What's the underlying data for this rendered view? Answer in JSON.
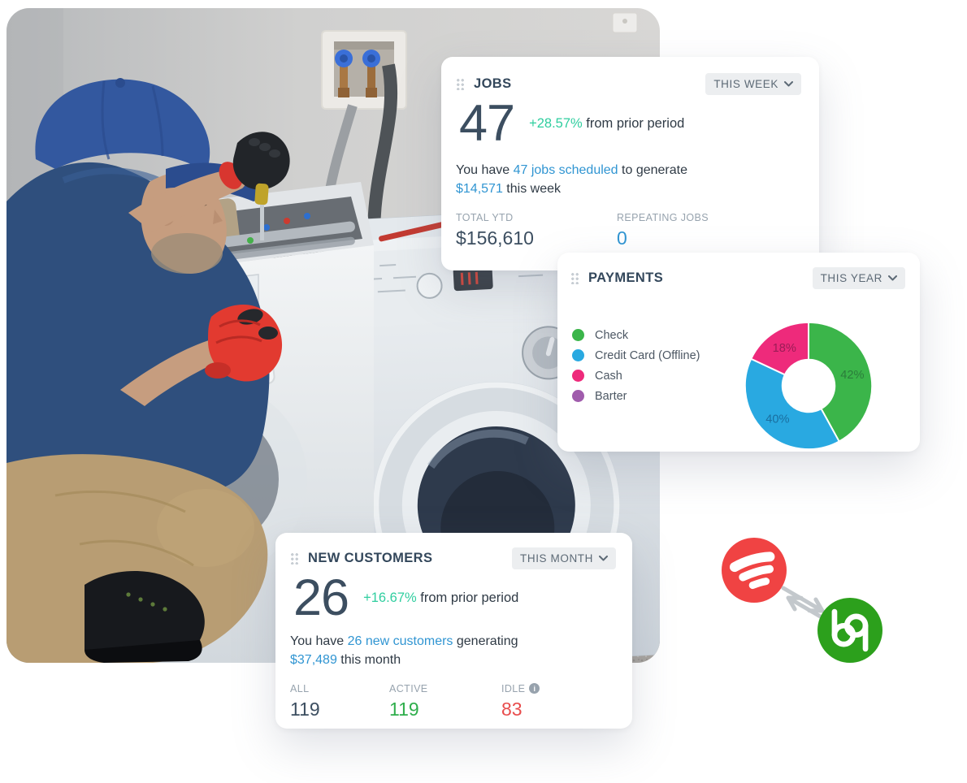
{
  "colors": {
    "card_title": "#33475b",
    "big_number": "#3c4e60",
    "body_text": "#2f3a45",
    "muted_label": "#97a3ae",
    "link_blue": "#3095d2",
    "delta_green": "#2fce9f",
    "stat_green": "#2fae4c",
    "stat_red": "#e84c4c",
    "pill_bg": "#eceef0",
    "pill_text": "#5d6a76",
    "handle_dot": "#c7cdd3",
    "fieldpulse_red": "#f04343",
    "quickbooks_green": "#2ca01c",
    "sync_arrow_gray": "#c3c8cc"
  },
  "jobs_card": {
    "title": "JOBS",
    "period_selector": "THIS WEEK",
    "value": "47",
    "delta": "+28.57%",
    "delta_suffix": " from prior period",
    "summary": {
      "t1": "You have ",
      "link1": "47 jobs scheduled",
      "t2": " to generate ",
      "link2": "$14,571",
      "t3": " this week"
    },
    "stats": [
      {
        "label": "TOTAL YTD",
        "value": "$156,610",
        "value_color": "#3c4e60"
      },
      {
        "label": "REPEATING JOBS",
        "value": "0",
        "value_color": "#3095d2"
      }
    ]
  },
  "payments_card": {
    "title": "PAYMENTS",
    "period_selector": "THIS YEAR",
    "chart_data": {
      "type": "pie",
      "donut": true,
      "legend_position": "left",
      "categories": [
        "Check",
        "Credit Card (Offline)",
        "Cash",
        "Barter"
      ],
      "values": [
        42,
        40,
        18,
        0
      ],
      "unit": "%",
      "slice_labels": [
        "42%",
        "40%",
        "18%",
        ""
      ],
      "colors": [
        "#3bb54a",
        "#29a9e1",
        "#ee2a7b",
        "#a05cac"
      ],
      "label_colors": [
        "#2b7d3b",
        "#1a6fa0",
        "#9b1c56",
        "#6f3d78"
      ],
      "start_angle_deg": 0,
      "clockwise": true
    }
  },
  "customers_card": {
    "title": "NEW CUSTOMERS",
    "period_selector": "THIS MONTH",
    "value": "26",
    "delta": "+16.67%",
    "delta_suffix": " from prior period",
    "summary": {
      "t1": "You have ",
      "link1": "26 new customers",
      "t2": " generating ",
      "link2": "$37,489",
      "t3": " this month"
    },
    "stats": [
      {
        "label": "ALL",
        "value": "119",
        "value_color": "#3c4e60",
        "info": false
      },
      {
        "label": "ACTIVE",
        "value": "119",
        "value_color": "#2fae4c",
        "info": false
      },
      {
        "label": "IDLE",
        "value": "83",
        "value_color": "#e84c4c",
        "info": true
      }
    ]
  },
  "photo": {
    "alt": "technician repairing a washing machine next to a dryer"
  }
}
